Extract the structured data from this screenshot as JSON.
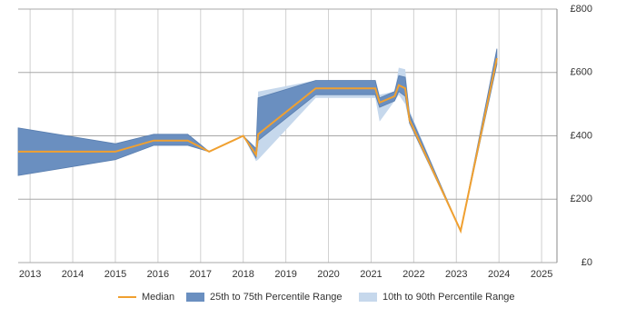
{
  "chart_data": {
    "type": "line",
    "x": [
      2012.72,
      2015.0,
      2015.9,
      2016.7,
      2017.2,
      2018.0,
      2018.3,
      2018.35,
      2019.7,
      2021.1,
      2021.2,
      2021.55,
      2021.65,
      2021.8,
      2021.9,
      2023.1,
      2023.95
    ],
    "series": [
      {
        "name": "Median",
        "color": "#f0a030",
        "values": [
          350,
          350,
          385,
          385,
          350,
          400,
          340,
          405,
          550,
          550,
          505,
          525,
          560,
          550,
          450,
          100,
          645
        ]
      },
      {
        "name": "25th to 75th Percentile Range",
        "color": "#6a8fc0",
        "lower": [
          275,
          325,
          370,
          370,
          350,
          400,
          330,
          385,
          530,
          530,
          490,
          510,
          540,
          525,
          440,
          100,
          625
        ],
        "upper": [
          425,
          375,
          405,
          405,
          350,
          400,
          360,
          520,
          575,
          575,
          520,
          540,
          590,
          585,
          470,
          100,
          675
        ]
      },
      {
        "name": "10th to 90th Percentile Range",
        "color": "#c6d8ec",
        "lower": [
          275,
          325,
          370,
          370,
          350,
          400,
          320,
          325,
          520,
          520,
          445,
          510,
          530,
          500,
          440,
          100,
          625
        ],
        "upper": [
          425,
          375,
          405,
          405,
          350,
          400,
          360,
          540,
          575,
          575,
          530,
          540,
          615,
          610,
          480,
          100,
          675
        ]
      }
    ],
    "xlim": [
      2012.72,
      2025.36
    ],
    "xticks": [
      2013,
      2014,
      2015,
      2016,
      2017,
      2018,
      2019,
      2020,
      2021,
      2022,
      2023,
      2024,
      2025
    ],
    "ylim": [
      0,
      800
    ],
    "yticks": [
      {
        "value": 0,
        "label": "£0"
      },
      {
        "value": 200,
        "label": "£200"
      },
      {
        "value": 400,
        "label": "£400"
      },
      {
        "value": 600,
        "label": "£600"
      },
      {
        "value": 800,
        "label": "£800"
      }
    ],
    "grid": true,
    "legend": "bottom"
  }
}
